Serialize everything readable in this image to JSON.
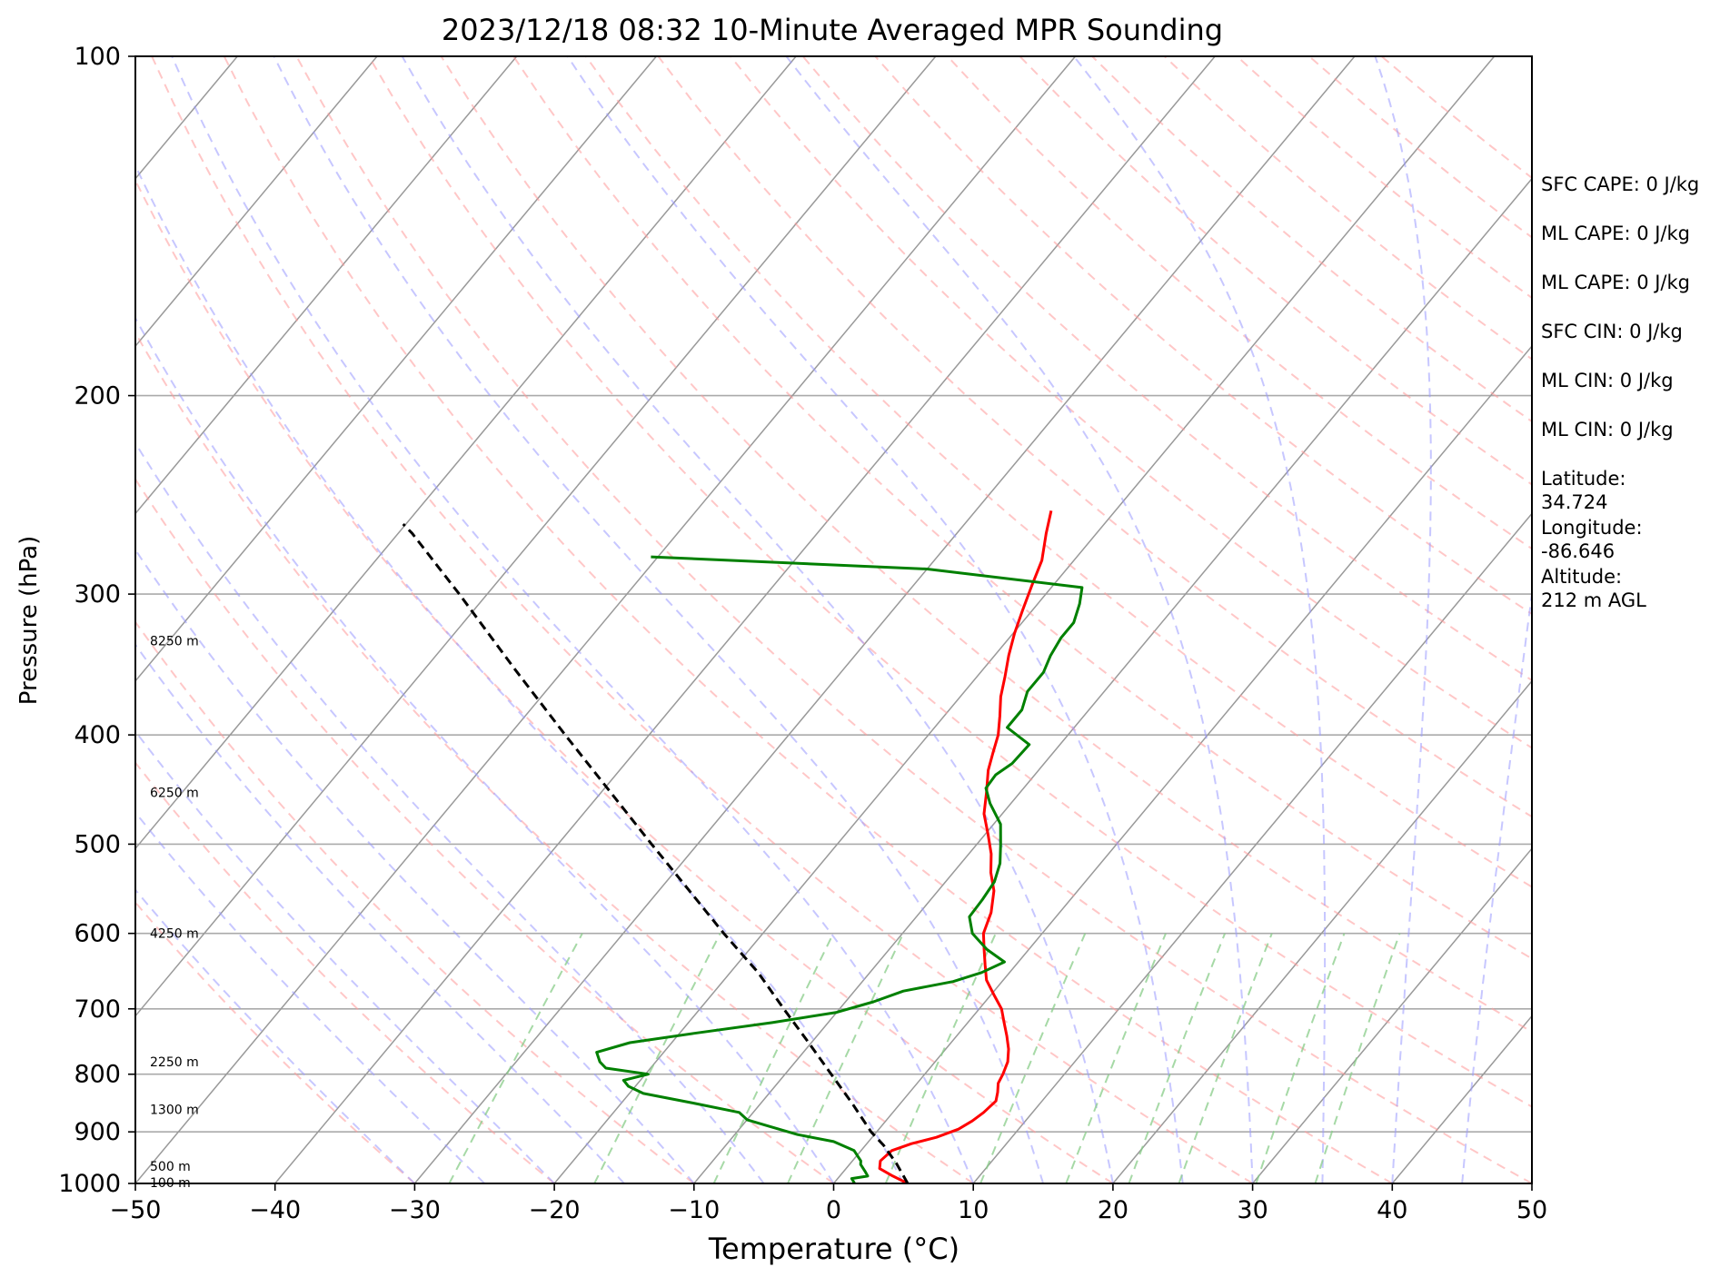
{
  "chart_data": {
    "type": "line",
    "subtype": "skew-t log-p sounding",
    "title": "2023/12/18 08:32 10-Minute Averaged MPR Sounding",
    "xlabel": "Temperature (°C)",
    "ylabel": "Pressure (hPa)",
    "xlim": [
      -50,
      50
    ],
    "ylim": [
      1000,
      100
    ],
    "y_scale": "log",
    "x_ticks": [
      "−50",
      "−40",
      "−30",
      "−20",
      "−10",
      "0",
      "10",
      "20",
      "30",
      "40",
      "50"
    ],
    "y_ticks": [
      "100",
      "200",
      "300",
      "400",
      "500",
      "600",
      "700",
      "800",
      "900",
      "1000"
    ],
    "grid": true,
    "series": [
      {
        "key": "temperature",
        "color": "#ff0000",
        "points": [
          [
            1000,
            5.3
          ],
          [
            985,
            3.8
          ],
          [
            970,
            2.4
          ],
          [
            955,
            2.0
          ],
          [
            935,
            2.2
          ],
          [
            922,
            3.2
          ],
          [
            910,
            4.6
          ],
          [
            895,
            5.7
          ],
          [
            880,
            6.2
          ],
          [
            865,
            6.5
          ],
          [
            845,
            6.7
          ],
          [
            830,
            6.3
          ],
          [
            815,
            5.8
          ],
          [
            800,
            5.6
          ],
          [
            780,
            5.2
          ],
          [
            760,
            4.5
          ],
          [
            740,
            3.6
          ],
          [
            720,
            2.6
          ],
          [
            700,
            1.6
          ],
          [
            680,
            0.2
          ],
          [
            660,
            -1.2
          ],
          [
            640,
            -2.2
          ],
          [
            620,
            -3.2
          ],
          [
            600,
            -4.2
          ],
          [
            575,
            -4.9
          ],
          [
            550,
            -6.0
          ],
          [
            530,
            -7.3
          ],
          [
            510,
            -8.4
          ],
          [
            490,
            -9.8
          ],
          [
            470,
            -11.3
          ],
          [
            450,
            -12.4
          ],
          [
            430,
            -13.6
          ],
          [
            415,
            -14.3
          ],
          [
            400,
            -15.0
          ],
          [
            385,
            -16.0
          ],
          [
            370,
            -17.1
          ],
          [
            355,
            -18.0
          ],
          [
            340,
            -19.0
          ],
          [
            325,
            -19.9
          ],
          [
            310,
            -20.7
          ],
          [
            295,
            -21.5
          ],
          [
            280,
            -22.3
          ],
          [
            265,
            -23.6
          ],
          [
            253,
            -24.6
          ]
        ]
      },
      {
        "key": "dewpoint",
        "color": "#008000",
        "points": [
          [
            1000,
            1.5
          ],
          [
            990,
            1.0
          ],
          [
            985,
            2.0
          ],
          [
            975,
            1.5
          ],
          [
            962,
            0.8
          ],
          [
            955,
            0.6
          ],
          [
            935,
            -0.5
          ],
          [
            918,
            -2.5
          ],
          [
            905,
            -5.5
          ],
          [
            890,
            -8.0
          ],
          [
            878,
            -10.0
          ],
          [
            865,
            -11.0
          ],
          [
            848,
            -15.0
          ],
          [
            832,
            -19.0
          ],
          [
            820,
            -20.5
          ],
          [
            810,
            -21.2
          ],
          [
            800,
            -19.8
          ],
          [
            790,
            -23.2
          ],
          [
            780,
            -24.0
          ],
          [
            765,
            -24.8
          ],
          [
            750,
            -23.0
          ],
          [
            736,
            -19.0
          ],
          [
            720,
            -14.0
          ],
          [
            705,
            -10.0
          ],
          [
            690,
            -8.0
          ],
          [
            675,
            -6.5
          ],
          [
            662,
            -3.5
          ],
          [
            650,
            -2.0
          ],
          [
            636,
            -1.0
          ],
          [
            620,
            -3.0
          ],
          [
            600,
            -5.0
          ],
          [
            580,
            -6.2
          ],
          [
            560,
            -6.3
          ],
          [
            540,
            -6.5
          ],
          [
            520,
            -7.2
          ],
          [
            500,
            -8.3
          ],
          [
            480,
            -9.5
          ],
          [
            460,
            -11.5
          ],
          [
            446,
            -12.7
          ],
          [
            434,
            -12.8
          ],
          [
            424,
            -12.3
          ],
          [
            408,
            -12.2
          ],
          [
            394,
            -14.8
          ],
          [
            380,
            -14.8
          ],
          [
            366,
            -15.5
          ],
          [
            352,
            -15.5
          ],
          [
            340,
            -16.0
          ],
          [
            328,
            -16.3
          ],
          [
            318,
            -16.3
          ],
          [
            306,
            -17.0
          ],
          [
            296,
            -17.8
          ],
          [
            285,
            -30.0
          ],
          [
            278,
            -50.5
          ]
        ]
      },
      {
        "key": "parcel",
        "color": "#000000",
        "style": "dashed",
        "points": [
          [
            1000,
            5.3
          ],
          [
            960,
            3.3
          ],
          [
            925,
            1.3
          ],
          [
            900,
            -0.4
          ],
          [
            850,
            -3.4
          ],
          [
            800,
            -6.7
          ],
          [
            750,
            -10.2
          ],
          [
            700,
            -14.0
          ],
          [
            650,
            -18.0
          ],
          [
            600,
            -22.8
          ],
          [
            550,
            -27.8
          ],
          [
            500,
            -33.3
          ],
          [
            450,
            -39.3
          ],
          [
            400,
            -46.0
          ],
          [
            350,
            -53.5
          ],
          [
            300,
            -62.0
          ],
          [
            265,
            -69.0
          ],
          [
            260,
            -70.2
          ]
        ]
      }
    ],
    "height_labels": [
      {
        "pressure": 998,
        "label": "100 m"
      },
      {
        "pressure": 965,
        "label": "500 m"
      },
      {
        "pressure": 860,
        "label": "1300 m"
      },
      {
        "pressure": 780,
        "label": "2250 m"
      },
      {
        "pressure": 600,
        "label": "4250 m"
      },
      {
        "pressure": 450,
        "label": "6250 m"
      },
      {
        "pressure": 330,
        "label": "8250 m"
      }
    ],
    "side_info": [
      "SFC CAPE: 0 J/kg",
      "ML CAPE: 0 J/kg",
      "ML CAPE: 0 J/kg",
      "SFC CIN: 0 J/kg",
      "ML CIN: 0 J/kg",
      "ML CIN: 0 J/kg",
      "Latitude:\n34.724",
      "Longitude:\n-86.646",
      "Altitude:\n212 m AGL"
    ],
    "colors": {
      "dry_adiabats": "#ff9999",
      "moist_adiabats": "#9999ff",
      "mixing_ratio": "#88cc88",
      "isotherms": "#999999",
      "isobars": "#aaaaaa"
    }
  }
}
